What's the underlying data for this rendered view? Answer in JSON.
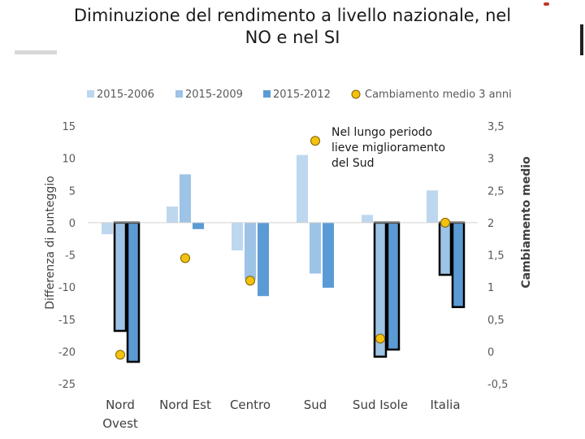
{
  "page": {
    "title_line1": "Diminuzione del rendimento a livello nazionale, nel",
    "title_line2": "NO e nel SI"
  },
  "chart_data": {
    "type": "bar",
    "title": "Diminuzione del rendimento a livello nazionale, nel NO e nel SI",
    "categories": [
      [
        "Nord",
        "Ovest"
      ],
      [
        "Nord Est"
      ],
      [
        "Centro"
      ],
      [
        "Sud"
      ],
      [
        "Sud Isole"
      ],
      [
        "Italia"
      ]
    ],
    "series": [
      {
        "name": "2015-2006",
        "color": "#bdd7ee",
        "values": [
          -1.8,
          2.5,
          -4.3,
          10.5,
          1.2,
          5.0
        ]
      },
      {
        "name": "2015-2009",
        "color": "#9dc3e6",
        "values": [
          -16.8,
          7.5,
          -8.8,
          -7.9,
          -20.8,
          -8.1
        ]
      },
      {
        "name": "2015-2012",
        "color": "#5b9bd5",
        "values": [
          -21.6,
          -1.0,
          -11.4,
          -10.1,
          -19.7,
          -13.1
        ]
      }
    ],
    "highlight_series": [
      "2015-2009",
      "2015-2012"
    ],
    "highlight_categories": [
      0,
      4,
      5
    ],
    "line_series": {
      "name": "Cambiamento medio 3 anni",
      "color": "#f4c20d",
      "axis": "secondary",
      "values": [
        -0.05,
        1.45,
        1.1,
        3.27,
        0.2,
        2.0
      ]
    },
    "ylabel": "Differenza di punteggio",
    "ylabel_secondary": "Cambiamento medio",
    "ylim": [
      -25,
      15
    ],
    "yticks": [
      15,
      10,
      5,
      0,
      -5,
      -10,
      -15,
      -20,
      -25
    ],
    "ytick_labels": [
      "15",
      "10",
      "5",
      "0",
      "-5",
      "-10",
      "-15",
      "-20",
      "-25"
    ],
    "ylim_secondary": [
      -0.5,
      3.5
    ],
    "yticks_secondary": [
      3.5,
      3,
      2.5,
      2,
      1.5,
      1,
      0.5,
      0,
      -0.5
    ],
    "ytick_labels_secondary": [
      "3,5",
      "3",
      "2,5",
      "2",
      "1,5",
      "1",
      "0,5",
      "0",
      "-0,5"
    ],
    "legend": {
      "position": "top",
      "entries": [
        "2015-2006",
        "2015-2009",
        "2015-2012",
        "Cambiamento medio 3 anni"
      ]
    },
    "annotation": [
      "Nel lungo periodo",
      "lieve miglioramento",
      "del Sud"
    ],
    "grid": false
  }
}
